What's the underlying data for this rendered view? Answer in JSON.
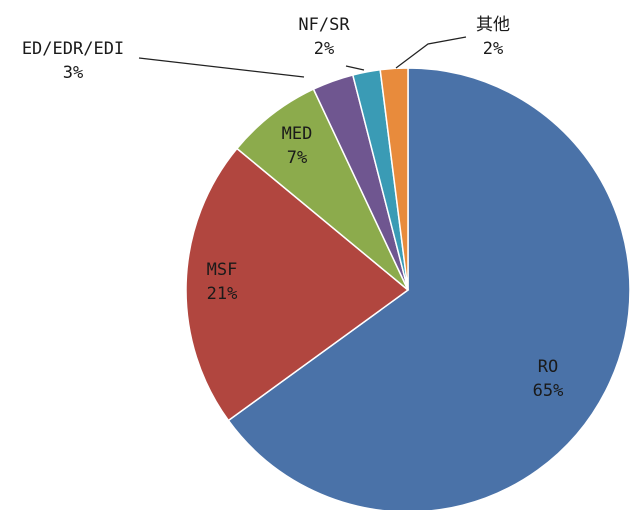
{
  "chart_data": {
    "type": "pie",
    "title": "",
    "slices": [
      {
        "name": "RO",
        "value": 65,
        "label": "65%",
        "color": "#4a72a8"
      },
      {
        "name": "MSF",
        "value": 21,
        "label": "21%",
        "color": "#b1463f"
      },
      {
        "name": "MED",
        "value": 7,
        "label": "7%",
        "color": "#8cab4c"
      },
      {
        "name": "ED/EDR/EDI",
        "value": 3,
        "label": "3%",
        "color": "#6f5690"
      },
      {
        "name": "NF/SR",
        "value": 2,
        "label": "2%",
        "color": "#3a9bb5"
      },
      {
        "name": "其他",
        "value": 2,
        "label": "2%",
        "color": "#e88b3c"
      }
    ],
    "legend": "none"
  }
}
